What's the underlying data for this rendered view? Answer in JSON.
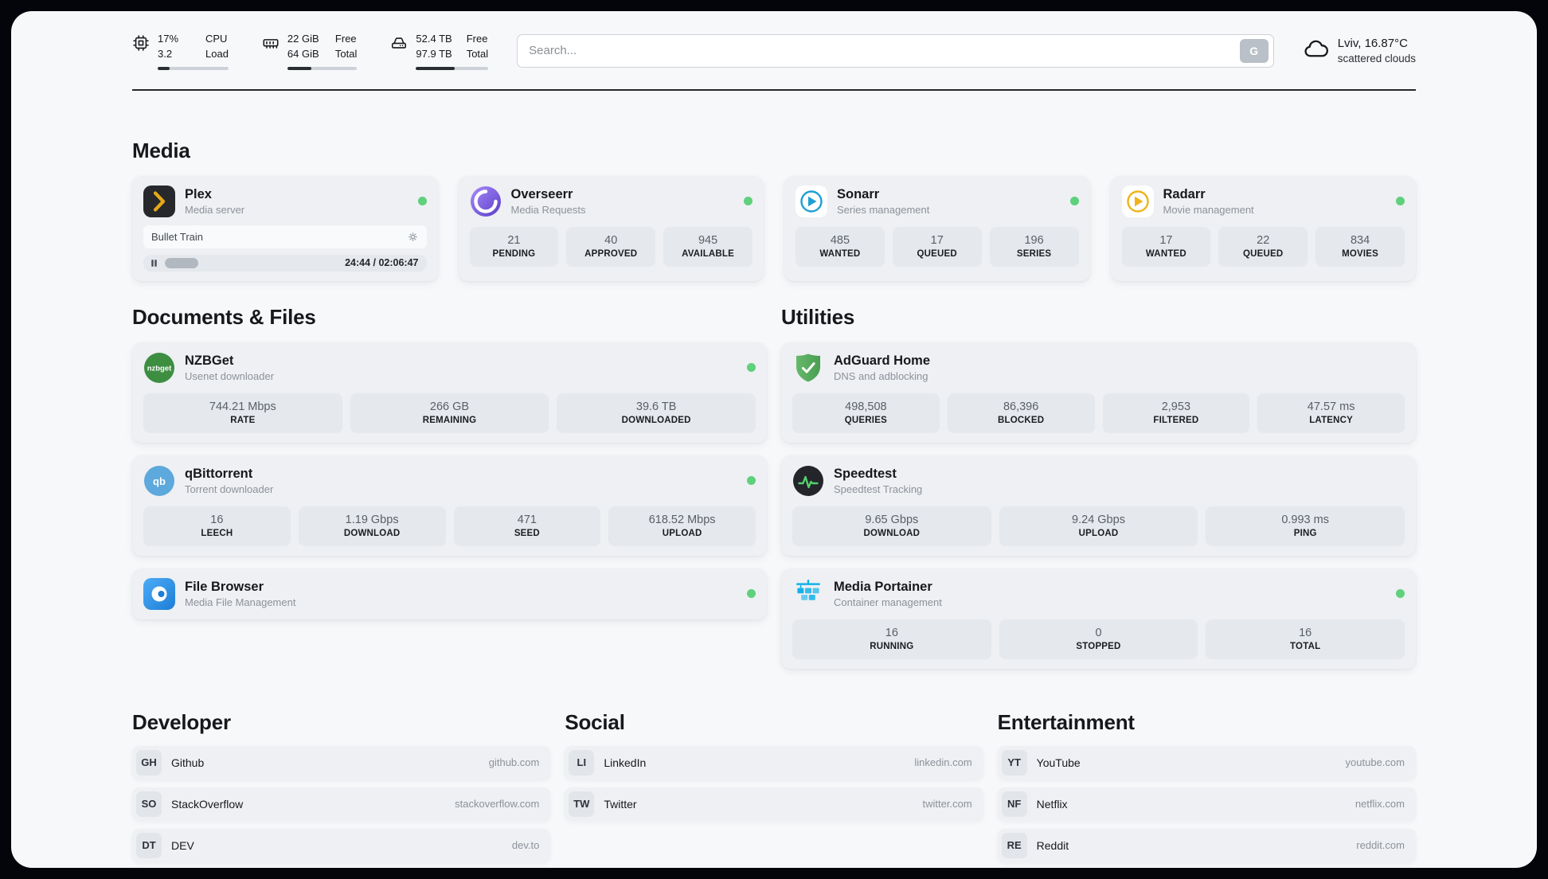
{
  "colors": {
    "status_online": "#5fd07c",
    "page_background": "#f7f8fa",
    "card_background": "#eef0f3",
    "accent_text": "#17181c"
  },
  "topbar": {
    "cpu": {
      "value_top": "17%",
      "value_bottom": "3.2",
      "label_top": "CPU",
      "label_bottom": "Load",
      "progress_percent": 17
    },
    "ram": {
      "value_top": "22 GiB",
      "value_bottom": "64 GiB",
      "label_top": "Free",
      "label_bottom": "Total",
      "progress_percent": 34
    },
    "disk": {
      "value_top": "52.4 TB",
      "value_bottom": "97.9 TB",
      "label_top": "Free",
      "label_bottom": "Total",
      "progress_percent": 54
    },
    "search": {
      "placeholder": "Search...",
      "button_label": "G"
    },
    "weather": {
      "location": "Lviv, 16.87°C",
      "condition": "scattered clouds"
    }
  },
  "sections": {
    "media": {
      "title": "Media",
      "plex": {
        "name": "Plex",
        "subtitle": "Media server",
        "now_playing": "Bullet Train",
        "time": "24:44 / 02:06:47",
        "progress_percent": 19
      },
      "overseerr": {
        "name": "Overseerr",
        "subtitle": "Media Requests",
        "stats": [
          {
            "value": "21",
            "label": "PENDING"
          },
          {
            "value": "40",
            "label": "APPROVED"
          },
          {
            "value": "945",
            "label": "AVAILABLE"
          }
        ]
      },
      "sonarr": {
        "name": "Sonarr",
        "subtitle": "Series management",
        "stats": [
          {
            "value": "485",
            "label": "WANTED"
          },
          {
            "value": "17",
            "label": "QUEUED"
          },
          {
            "value": "196",
            "label": "SERIES"
          }
        ]
      },
      "radarr": {
        "name": "Radarr",
        "subtitle": "Movie management",
        "stats": [
          {
            "value": "17",
            "label": "WANTED"
          },
          {
            "value": "22",
            "label": "QUEUED"
          },
          {
            "value": "834",
            "label": "MOVIES"
          }
        ]
      }
    },
    "documents": {
      "title": "Documents & Files",
      "nzbget": {
        "name": "NZBGet",
        "subtitle": "Usenet downloader",
        "stats": [
          {
            "value": "744.21 Mbps",
            "label": "RATE"
          },
          {
            "value": "266 GB",
            "label": "REMAINING"
          },
          {
            "value": "39.6 TB",
            "label": "DOWNLOADED"
          }
        ]
      },
      "qbittorrent": {
        "name": "qBittorrent",
        "subtitle": "Torrent downloader",
        "stats": [
          {
            "value": "16",
            "label": "LEECH"
          },
          {
            "value": "1.19 Gbps",
            "label": "DOWNLOAD"
          },
          {
            "value": "471",
            "label": "SEED"
          },
          {
            "value": "618.52 Mbps",
            "label": "UPLOAD"
          }
        ]
      },
      "filebrowser": {
        "name": "File Browser",
        "subtitle": "Media File Management"
      }
    },
    "utilities": {
      "title": "Utilities",
      "adguard": {
        "name": "AdGuard Home",
        "subtitle": "DNS and adblocking",
        "stats": [
          {
            "value": "498,508",
            "label": "QUERIES"
          },
          {
            "value": "86,396",
            "label": "BLOCKED"
          },
          {
            "value": "2,953",
            "label": "FILTERED"
          },
          {
            "value": "47.57 ms",
            "label": "LATENCY"
          }
        ]
      },
      "speedtest": {
        "name": "Speedtest",
        "subtitle": "Speedtest Tracking",
        "stats": [
          {
            "value": "9.65 Gbps",
            "label": "DOWNLOAD"
          },
          {
            "value": "9.24 Gbps",
            "label": "UPLOAD"
          },
          {
            "value": "0.993 ms",
            "label": "PING"
          }
        ]
      },
      "portainer": {
        "name": "Media Portainer",
        "subtitle": "Container management",
        "stats": [
          {
            "value": "16",
            "label": "RUNNING"
          },
          {
            "value": "0",
            "label": "STOPPED"
          },
          {
            "value": "16",
            "label": "TOTAL"
          }
        ]
      }
    },
    "developer": {
      "title": "Developer",
      "links": [
        {
          "abbr": "GH",
          "name": "Github",
          "url": "github.com"
        },
        {
          "abbr": "SO",
          "name": "StackOverflow",
          "url": "stackoverflow.com"
        },
        {
          "abbr": "DT",
          "name": "DEV",
          "url": "dev.to"
        }
      ]
    },
    "social": {
      "title": "Social",
      "links": [
        {
          "abbr": "LI",
          "name": "LinkedIn",
          "url": "linkedin.com"
        },
        {
          "abbr": "TW",
          "name": "Twitter",
          "url": "twitter.com"
        }
      ]
    },
    "entertainment": {
      "title": "Entertainment",
      "links": [
        {
          "abbr": "YT",
          "name": "YouTube",
          "url": "youtube.com"
        },
        {
          "abbr": "NF",
          "name": "Netflix",
          "url": "netflix.com"
        },
        {
          "abbr": "RE",
          "name": "Reddit",
          "url": "reddit.com"
        }
      ]
    }
  }
}
